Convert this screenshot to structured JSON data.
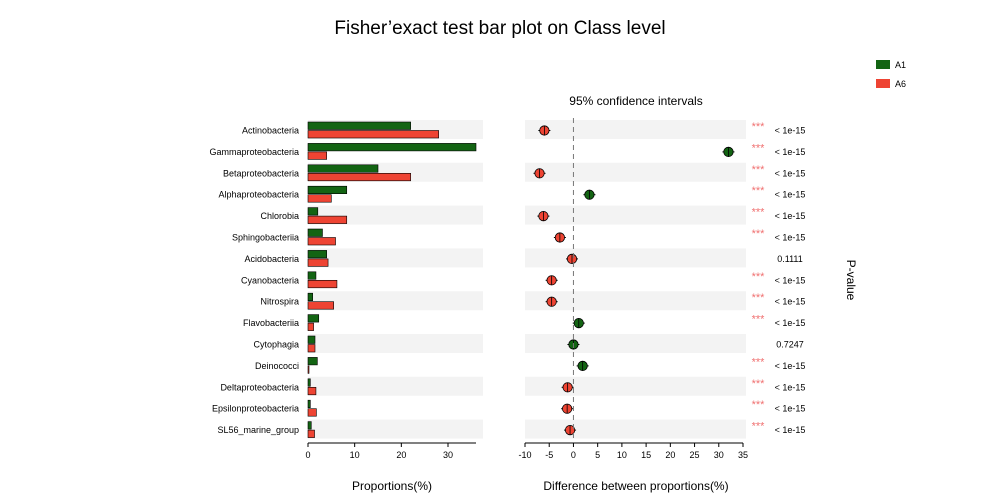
{
  "chart_data": {
    "type": "bar",
    "title": "Fisher’exact test bar plot on Class level",
    "groups": [
      {
        "name": "A1",
        "color": "#136413"
      },
      {
        "name": "A6",
        "color": "#ee4433"
      }
    ],
    "categories": [
      "Actinobacteria",
      "Gammaproteobacteria",
      "Betaproteobacteria",
      "Alphaproteobacteria",
      "Chlorobia",
      "Sphingobacteriia",
      "Acidobacteria",
      "Cyanobacteria",
      "Nitrospira",
      "Flavobacteriia",
      "Cytophagia",
      "Deinococci",
      "Deltaproteobacteria",
      "Epsilonproteobacteria",
      "SL56_marine_group"
    ],
    "proportions": {
      "xlabel": "Proportions(%)",
      "xlim": [
        0,
        36
      ],
      "ticks": [
        0,
        10,
        20,
        30
      ],
      "A1": [
        22.0,
        36.0,
        15.0,
        8.3,
        2.1,
        3.1,
        4.0,
        1.7,
        1.0,
        2.3,
        1.5,
        2.0,
        0.5,
        0.5,
        0.7
      ],
      "A6": [
        28.0,
        4.0,
        22.0,
        5.0,
        8.3,
        5.9,
        4.3,
        6.2,
        5.5,
        1.2,
        1.5,
        0.1,
        1.7,
        1.8,
        1.4
      ]
    },
    "difference": {
      "subtitle": "95% confidence intervals",
      "xlabel": "Difference between proportions(%)",
      "xlim": [
        -10,
        35
      ],
      "ticks": [
        -10,
        -5,
        0,
        5,
        10,
        15,
        20,
        25,
        30,
        35
      ],
      "values": [
        -6.0,
        32.0,
        -7.0,
        3.3,
        -6.2,
        -2.8,
        -0.3,
        -4.5,
        -4.5,
        1.1,
        0.0,
        1.9,
        -1.2,
        -1.3,
        -0.7
      ],
      "colors": [
        "#ee4433",
        "#136413",
        "#ee4433",
        "#136413",
        "#ee4433",
        "#ee4433",
        "#ee4433",
        "#ee4433",
        "#ee4433",
        "#136413",
        "#136413",
        "#136413",
        "#ee4433",
        "#ee4433",
        "#ee4433"
      ]
    },
    "pvalue": {
      "label": "P-value",
      "values": [
        "< 1e-15",
        "< 1e-15",
        "< 1e-15",
        "< 1e-15",
        "< 1e-15",
        "< 1e-15",
        "0.1111",
        "< 1e-15",
        "< 1e-15",
        "< 1e-15",
        "0.7247",
        "< 1e-15",
        "< 1e-15",
        "< 1e-15",
        "< 1e-15"
      ],
      "stars": [
        "***",
        "***",
        "***",
        "***",
        "***",
        "***",
        "",
        "***",
        "***",
        "***",
        "",
        "***",
        "***",
        "***",
        "***"
      ]
    },
    "legend_position": "top-right",
    "grid": false
  }
}
